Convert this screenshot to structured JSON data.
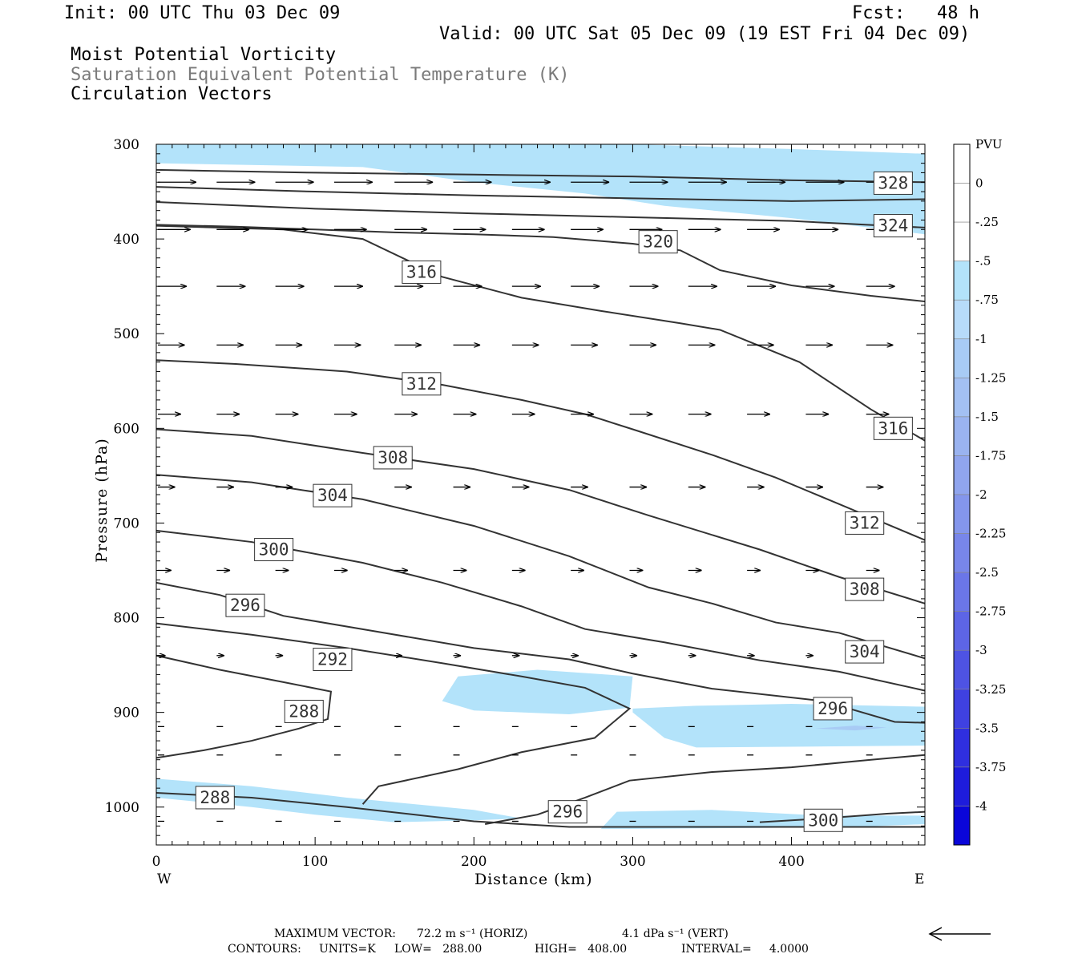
{
  "header": {
    "init": "Init: 00 UTC Thu 03 Dec 09",
    "fcst": "Fcst:   48 h",
    "valid": "Valid: 00 UTC Sat 05 Dec 09 (19 EST Fri 04 Dec 09)",
    "field1": "Moist Potential Vorticity",
    "field2": "Saturation Equivalent Potential Temperature (K)",
    "field3": "Circulation Vectors"
  },
  "footer": {
    "maxvec_label": "MAXIMUM VECTOR:",
    "maxvec_horiz": "72.2 m s⁻¹ (HORIZ)",
    "maxvec_vert": "4.1 dPa s⁻¹ (VERT)",
    "contours_label": "CONTOURS:",
    "units": "UNITS=K",
    "low": "LOW=   288.00",
    "high": "HIGH=   408.00",
    "interval": "INTERVAL=     4.0000"
  },
  "colors": {
    "contour": "#333333",
    "pv_light": "#b3e3fa",
    "pv_mid": "#a8cbf5",
    "vector": "#000000"
  },
  "chart_data": {
    "type": "contour-cross-section",
    "xlabel": "Distance (km)",
    "ylabel": "Pressure (hPa)",
    "xlim": [
      0,
      484
    ],
    "ylim": [
      1040,
      300
    ],
    "x_ticks": [
      0,
      100,
      200,
      300,
      400
    ],
    "y_ticks": [
      300,
      400,
      500,
      600,
      700,
      800,
      900,
      1000
    ],
    "x_end_labels": {
      "left": "W",
      "right": "E"
    },
    "colorbar": {
      "title": "PVU",
      "ticks": [
        "0",
        "-.25",
        "-.5",
        "-.75",
        "-1",
        "-1.25",
        "-1.5",
        "-1.75",
        "-2",
        "-2.25",
        "-2.5",
        "-2.75",
        "-3",
        "-3.25",
        "-3.5",
        "-3.75",
        "-4"
      ],
      "colors": [
        "#ffffff",
        "#ffffff",
        "#b3e3fa",
        "#b7dbf9",
        "#a8cbf5",
        "#a3c0f3",
        "#9ab3f0",
        "#90a5ee",
        "#8496ec",
        "#7886ea",
        "#6b76e8",
        "#5d65e6",
        "#4e53e3",
        "#3f41e1",
        "#2f2fdf",
        "#1e1cdc",
        "#0a06d9"
      ]
    },
    "contour_levels_labeled": [
      "328",
      "324",
      "320",
      "316",
      "316",
      "312",
      "312",
      "308",
      "308",
      "304",
      "304",
      "300",
      "300",
      "296",
      "296",
      "296",
      "292",
      "288",
      "288"
    ],
    "contours": [
      {
        "level": 328,
        "points": [
          [
            0,
            327
          ],
          [
            100,
            330
          ],
          [
            200,
            332
          ],
          [
            300,
            334
          ],
          [
            400,
            338
          ],
          [
            484,
            340
          ]
        ]
      },
      {
        "level": 328,
        "points": [
          [
            0,
            345
          ],
          [
            100,
            350
          ],
          [
            200,
            354
          ],
          [
            300,
            357
          ],
          [
            400,
            360
          ],
          [
            484,
            358
          ]
        ]
      },
      {
        "level": 324,
        "points": [
          [
            0,
            361
          ],
          [
            100,
            368
          ],
          [
            200,
            373
          ],
          [
            300,
            377
          ],
          [
            400,
            381
          ],
          [
            484,
            388
          ]
        ]
      },
      {
        "level": 320,
        "points": [
          [
            0,
            385
          ],
          [
            50,
            387
          ],
          [
            100,
            390
          ],
          [
            150,
            393
          ],
          [
            200,
            395
          ],
          [
            250,
            398
          ],
          [
            300,
            405
          ],
          [
            330,
            412
          ],
          [
            355,
            433
          ],
          [
            400,
            449
          ],
          [
            450,
            460
          ],
          [
            484,
            466
          ]
        ]
      },
      {
        "level": 316,
        "points": [
          [
            0,
            386
          ],
          [
            80,
            390
          ],
          [
            130,
            400
          ],
          [
            180,
            440
          ],
          [
            230,
            462
          ],
          [
            280,
            476
          ],
          [
            330,
            489
          ],
          [
            355,
            496
          ],
          [
            405,
            530
          ],
          [
            450,
            580
          ],
          [
            484,
            613
          ]
        ]
      },
      {
        "level": 312,
        "points": [
          [
            0,
            528
          ],
          [
            50,
            532
          ],
          [
            120,
            540
          ],
          [
            180,
            554
          ],
          [
            230,
            570
          ],
          [
            270,
            585
          ],
          [
            300,
            601
          ],
          [
            350,
            628
          ],
          [
            390,
            652
          ],
          [
            430,
            680
          ],
          [
            484,
            718
          ]
        ]
      },
      {
        "level": 308,
        "points": [
          [
            0,
            601
          ],
          [
            60,
            608
          ],
          [
            130,
            626
          ],
          [
            200,
            643
          ],
          [
            260,
            665
          ],
          [
            310,
            692
          ],
          [
            380,
            728
          ],
          [
            430,
            757
          ],
          [
            484,
            785
          ]
        ]
      },
      {
        "level": 304,
        "points": [
          [
            0,
            649
          ],
          [
            60,
            657
          ],
          [
            130,
            675
          ],
          [
            200,
            703
          ],
          [
            260,
            735
          ],
          [
            310,
            768
          ],
          [
            350,
            785
          ],
          [
            390,
            805
          ],
          [
            430,
            816
          ],
          [
            484,
            843
          ]
        ]
      },
      {
        "level": 300,
        "points": [
          [
            0,
            708
          ],
          [
            60,
            720
          ],
          [
            130,
            742
          ],
          [
            180,
            763
          ],
          [
            230,
            788
          ],
          [
            270,
            812
          ],
          [
            320,
            826
          ],
          [
            380,
            845
          ],
          [
            430,
            857
          ],
          [
            484,
            877
          ]
        ]
      },
      {
        "level": 296,
        "points": [
          [
            0,
            763
          ],
          [
            40,
            776
          ],
          [
            80,
            798
          ],
          [
            140,
            815
          ],
          [
            200,
            832
          ],
          [
            260,
            844
          ],
          [
            300,
            859
          ],
          [
            350,
            875
          ],
          [
            420,
            888
          ],
          [
            465,
            910
          ],
          [
            484,
            911
          ]
        ]
      },
      {
        "level": 292,
        "points": [
          [
            0,
            806
          ],
          [
            60,
            818
          ],
          [
            120,
            832
          ],
          [
            180,
            848
          ],
          [
            230,
            862
          ],
          [
            270,
            874
          ],
          [
            298,
            896
          ],
          [
            276,
            927
          ],
          [
            230,
            942
          ],
          [
            190,
            960
          ],
          [
            140,
            978
          ],
          [
            130,
            997
          ]
        ]
      },
      {
        "level": 288,
        "points": [
          [
            0,
            840
          ],
          [
            40,
            855
          ],
          [
            80,
            868
          ],
          [
            110,
            878
          ],
          [
            108,
            907
          ],
          [
            90,
            917
          ],
          [
            60,
            930
          ],
          [
            30,
            940
          ],
          [
            0,
            948
          ]
        ]
      },
      {
        "level": 296,
        "points": [
          [
            207,
            1018
          ],
          [
            240,
            1008
          ],
          [
            270,
            990
          ],
          [
            298,
            972
          ],
          [
            350,
            963
          ],
          [
            400,
            958
          ],
          [
            450,
            950
          ],
          [
            484,
            945
          ]
        ]
      },
      {
        "level": 300,
        "points": [
          [
            380,
            1016
          ],
          [
            420,
            1012
          ],
          [
            460,
            1007
          ],
          [
            484,
            1005
          ]
        ]
      },
      {
        "level": 288,
        "points": [
          [
            0,
            985
          ],
          [
            60,
            990
          ],
          [
            120,
            1000
          ],
          [
            200,
            1015
          ],
          [
            260,
            1021
          ],
          [
            484,
            1021
          ]
        ]
      }
    ],
    "contour_labels": [
      {
        "text": "328",
        "x": 464,
        "p": 341
      },
      {
        "text": "324",
        "x": 464,
        "p": 386
      },
      {
        "text": "320",
        "x": 316,
        "p": 403
      },
      {
        "text": "316",
        "x": 167,
        "p": 435
      },
      {
        "text": "316",
        "x": 464,
        "p": 600
      },
      {
        "text": "312",
        "x": 167,
        "p": 553
      },
      {
        "text": "312",
        "x": 446,
        "p": 700
      },
      {
        "text": "308",
        "x": 149,
        "p": 631
      },
      {
        "text": "308",
        "x": 446,
        "p": 770
      },
      {
        "text": "304",
        "x": 111,
        "p": 671
      },
      {
        "text": "304",
        "x": 446,
        "p": 836
      },
      {
        "text": "300",
        "x": 74,
        "p": 728
      },
      {
        "text": "300",
        "x": 420,
        "p": 1014
      },
      {
        "text": "296",
        "x": 56,
        "p": 787
      },
      {
        "text": "296",
        "x": 426,
        "p": 896
      },
      {
        "text": "296",
        "x": 259,
        "p": 1005
      },
      {
        "text": "292",
        "x": 111,
        "p": 844
      },
      {
        "text": "288",
        "x": 93,
        "p": 899
      },
      {
        "text": "288",
        "x": 37,
        "p": 990
      }
    ],
    "pv_regions": [
      {
        "color": "#b3e3fa",
        "points": [
          [
            0,
            300
          ],
          [
            100,
            300
          ],
          [
            200,
            300
          ],
          [
            300,
            300
          ],
          [
            400,
            305
          ],
          [
            484,
            310
          ],
          [
            484,
            395
          ],
          [
            400,
            378
          ],
          [
            320,
            365
          ],
          [
            270,
            352
          ],
          [
            200,
            340
          ],
          [
            130,
            324
          ],
          [
            0,
            320
          ]
        ]
      },
      {
        "color": "#b3e3fa",
        "points": [
          [
            180,
            888
          ],
          [
            190,
            862
          ],
          [
            240,
            855
          ],
          [
            300,
            862
          ],
          [
            298,
            895
          ],
          [
            260,
            902
          ],
          [
            200,
            898
          ]
        ]
      },
      {
        "color": "#b3e3fa",
        "points": [
          [
            300,
            896
          ],
          [
            340,
            893
          ],
          [
            400,
            891
          ],
          [
            484,
            894
          ],
          [
            484,
            935
          ],
          [
            420,
            936
          ],
          [
            340,
            937
          ],
          [
            320,
            927
          ],
          [
            300,
            900
          ]
        ]
      },
      {
        "color": "#b3e3fa",
        "points": [
          [
            0,
            970
          ],
          [
            60,
            978
          ],
          [
            120,
            990
          ],
          [
            200,
            1003
          ],
          [
            230,
            1012
          ],
          [
            200,
            1014
          ],
          [
            150,
            1016
          ],
          [
            100,
            1008
          ],
          [
            60,
            1000
          ],
          [
            0,
            990
          ]
        ]
      },
      {
        "color": "#b3e3fa",
        "points": [
          [
            280,
            1023
          ],
          [
            290,
            1005
          ],
          [
            350,
            1003
          ],
          [
            420,
            1009
          ],
          [
            484,
            1009
          ],
          [
            484,
            1018
          ],
          [
            440,
            1021
          ],
          [
            380,
            1022
          ],
          [
            300,
            1023
          ]
        ]
      },
      {
        "color": "#a8cbf5",
        "points": [
          [
            415,
            917
          ],
          [
            440,
            914
          ],
          [
            460,
            916
          ],
          [
            440,
            919
          ]
        ]
      }
    ],
    "vectors": {
      "rows": [
        {
          "p": 340,
          "u": 1.0,
          "w": 0.0
        },
        {
          "p": 390,
          "u": 0.85,
          "w": 0.0
        },
        {
          "p": 450,
          "u": 0.75,
          "w": 0.0
        },
        {
          "p": 512,
          "u": 0.7,
          "w": 0.0
        },
        {
          "p": 585,
          "u": 0.6,
          "w": 0.0
        },
        {
          "p": 662,
          "u": 0.45,
          "w": 0.0
        },
        {
          "p": 750,
          "u": 0.35,
          "w": 0.0
        },
        {
          "p": 840,
          "u": 0.2,
          "w": 0.0
        },
        {
          "p": 915,
          "u": 0.1,
          "w": 0.0
        },
        {
          "p": 945,
          "u": 0.05,
          "w": 0.0
        },
        {
          "p": 1015,
          "u": 0.05,
          "w": 0.0
        }
      ],
      "x_positions": [
        0,
        37,
        74,
        111,
        149,
        186,
        223,
        260,
        297,
        334,
        371,
        408,
        446
      ]
    }
  }
}
